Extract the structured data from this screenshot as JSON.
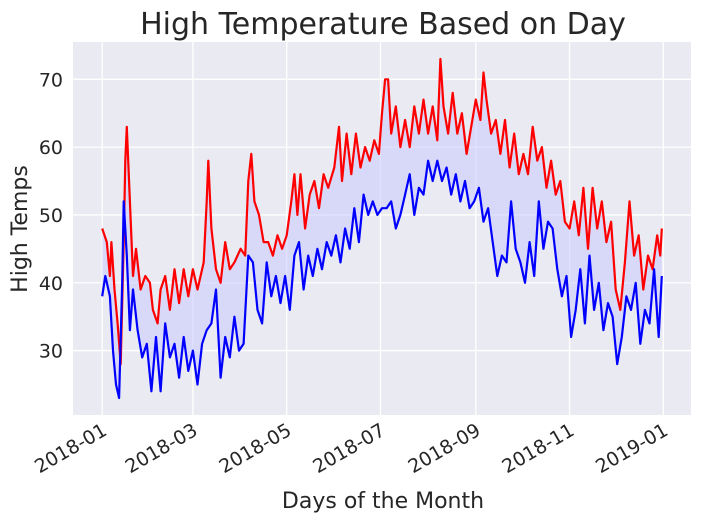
{
  "chart_data": {
    "type": "line",
    "title": "High Temperature Based on Day",
    "xlabel": "Days of the Month",
    "ylabel": "High Temps",
    "x_ticks": [
      "2018-01",
      "2018-03",
      "2018-05",
      "2018-07",
      "2018-09",
      "2018-11",
      "2019-01"
    ],
    "y_ticks": [
      30,
      40,
      50,
      60,
      70
    ],
    "ylim": [
      20.5,
      75.5
    ],
    "xlim": [
      "2017-12-13",
      "2019-01-19"
    ],
    "grid": true,
    "fill_between": true,
    "colors": {
      "high": "#ff0000",
      "low": "#0000ff",
      "fill": "#c8c8ff",
      "background": "#eaeaf2",
      "grid": "#ffffff"
    },
    "series": [
      {
        "key": "high",
        "color": "#ff0000",
        "points": [
          [
            "2018-01-01",
            48
          ],
          [
            "2018-01-04",
            46
          ],
          [
            "2018-01-06",
            41
          ],
          [
            "2018-01-07",
            46
          ],
          [
            "2018-01-09",
            39
          ],
          [
            "2018-01-11",
            34
          ],
          [
            "2018-01-13",
            28
          ],
          [
            "2018-01-15",
            46
          ],
          [
            "2018-01-16",
            58
          ],
          [
            "2018-01-17",
            63
          ],
          [
            "2018-01-19",
            52
          ],
          [
            "2018-01-21",
            41
          ],
          [
            "2018-01-23",
            45
          ],
          [
            "2018-01-26",
            39
          ],
          [
            "2018-01-29",
            41
          ],
          [
            "2018-02-01",
            40
          ],
          [
            "2018-02-03",
            36
          ],
          [
            "2018-02-06",
            34
          ],
          [
            "2018-02-08",
            39
          ],
          [
            "2018-02-11",
            41
          ],
          [
            "2018-02-14",
            36
          ],
          [
            "2018-02-17",
            42
          ],
          [
            "2018-02-20",
            37
          ],
          [
            "2018-02-23",
            42
          ],
          [
            "2018-02-26",
            38
          ],
          [
            "2018-03-01",
            42
          ],
          [
            "2018-03-04",
            39
          ],
          [
            "2018-03-08",
            43
          ],
          [
            "2018-03-10",
            52
          ],
          [
            "2018-03-11",
            58
          ],
          [
            "2018-03-13",
            48
          ],
          [
            "2018-03-16",
            42
          ],
          [
            "2018-03-19",
            40
          ],
          [
            "2018-03-22",
            46
          ],
          [
            "2018-03-25",
            42
          ],
          [
            "2018-03-28",
            43
          ],
          [
            "2018-04-01",
            45
          ],
          [
            "2018-04-04",
            44
          ],
          [
            "2018-04-06",
            55
          ],
          [
            "2018-04-08",
            59
          ],
          [
            "2018-04-10",
            52
          ],
          [
            "2018-04-13",
            50
          ],
          [
            "2018-04-16",
            46
          ],
          [
            "2018-04-19",
            46
          ],
          [
            "2018-04-22",
            44
          ],
          [
            "2018-04-25",
            47
          ],
          [
            "2018-04-28",
            45
          ],
          [
            "2018-05-01",
            47
          ],
          [
            "2018-05-04",
            52
          ],
          [
            "2018-05-06",
            56
          ],
          [
            "2018-05-08",
            50
          ],
          [
            "2018-05-10",
            56
          ],
          [
            "2018-05-13",
            48
          ],
          [
            "2018-05-16",
            53
          ],
          [
            "2018-05-19",
            55
          ],
          [
            "2018-05-22",
            51
          ],
          [
            "2018-05-25",
            56
          ],
          [
            "2018-05-28",
            54
          ],
          [
            "2018-06-01",
            57
          ],
          [
            "2018-06-04",
            63
          ],
          [
            "2018-06-06",
            55
          ],
          [
            "2018-06-09",
            62
          ],
          [
            "2018-06-12",
            56
          ],
          [
            "2018-06-15",
            62
          ],
          [
            "2018-06-18",
            57
          ],
          [
            "2018-06-21",
            60
          ],
          [
            "2018-06-24",
            58
          ],
          [
            "2018-06-27",
            61
          ],
          [
            "2018-06-30",
            59
          ],
          [
            "2018-07-02",
            65
          ],
          [
            "2018-07-04",
            70
          ],
          [
            "2018-07-06",
            70
          ],
          [
            "2018-07-08",
            62
          ],
          [
            "2018-07-11",
            66
          ],
          [
            "2018-07-14",
            60
          ],
          [
            "2018-07-17",
            64
          ],
          [
            "2018-07-20",
            60
          ],
          [
            "2018-07-23",
            66
          ],
          [
            "2018-07-26",
            62
          ],
          [
            "2018-07-29",
            67
          ],
          [
            "2018-08-01",
            62
          ],
          [
            "2018-08-04",
            66
          ],
          [
            "2018-08-07",
            61
          ],
          [
            "2018-08-09",
            73
          ],
          [
            "2018-08-11",
            66
          ],
          [
            "2018-08-14",
            62
          ],
          [
            "2018-08-17",
            68
          ],
          [
            "2018-08-20",
            62
          ],
          [
            "2018-08-23",
            65
          ],
          [
            "2018-08-26",
            59
          ],
          [
            "2018-08-29",
            63
          ],
          [
            "2018-09-01",
            67
          ],
          [
            "2018-09-04",
            64
          ],
          [
            "2018-09-06",
            71
          ],
          [
            "2018-09-08",
            67
          ],
          [
            "2018-09-11",
            62
          ],
          [
            "2018-09-14",
            64
          ],
          [
            "2018-09-17",
            59
          ],
          [
            "2018-09-20",
            64
          ],
          [
            "2018-09-23",
            57
          ],
          [
            "2018-09-26",
            62
          ],
          [
            "2018-09-29",
            56
          ],
          [
            "2018-10-02",
            59
          ],
          [
            "2018-10-05",
            56
          ],
          [
            "2018-10-08",
            63
          ],
          [
            "2018-10-11",
            58
          ],
          [
            "2018-10-14",
            60
          ],
          [
            "2018-10-17",
            54
          ],
          [
            "2018-10-20",
            58
          ],
          [
            "2018-10-23",
            53
          ],
          [
            "2018-10-26",
            55
          ],
          [
            "2018-10-29",
            49
          ],
          [
            "2018-11-01",
            48
          ],
          [
            "2018-11-04",
            52
          ],
          [
            "2018-11-07",
            47
          ],
          [
            "2018-11-10",
            54
          ],
          [
            "2018-11-13",
            45
          ],
          [
            "2018-11-16",
            54
          ],
          [
            "2018-11-19",
            48
          ],
          [
            "2018-11-22",
            52
          ],
          [
            "2018-11-25",
            46
          ],
          [
            "2018-11-28",
            49
          ],
          [
            "2018-12-01",
            39
          ],
          [
            "2018-12-04",
            36
          ],
          [
            "2018-12-07",
            43
          ],
          [
            "2018-12-10",
            52
          ],
          [
            "2018-12-13",
            44
          ],
          [
            "2018-12-16",
            47
          ],
          [
            "2018-12-19",
            39
          ],
          [
            "2018-12-22",
            44
          ],
          [
            "2018-12-25",
            42
          ],
          [
            "2018-12-28",
            47
          ],
          [
            "2018-12-30",
            44
          ],
          [
            "2018-12-31",
            48
          ]
        ]
      },
      {
        "key": "low",
        "color": "#0000ff",
        "points": [
          [
            "2018-01-01",
            38
          ],
          [
            "2018-01-03",
            41
          ],
          [
            "2018-01-06",
            38
          ],
          [
            "2018-01-08",
            30
          ],
          [
            "2018-01-10",
            25
          ],
          [
            "2018-01-12",
            23
          ],
          [
            "2018-01-14",
            40
          ],
          [
            "2018-01-15",
            52
          ],
          [
            "2018-01-17",
            44
          ],
          [
            "2018-01-19",
            33
          ],
          [
            "2018-01-21",
            39
          ],
          [
            "2018-01-24",
            33
          ],
          [
            "2018-01-27",
            29
          ],
          [
            "2018-01-30",
            31
          ],
          [
            "2018-02-02",
            24
          ],
          [
            "2018-02-05",
            32
          ],
          [
            "2018-02-08",
            24
          ],
          [
            "2018-02-11",
            34
          ],
          [
            "2018-02-14",
            29
          ],
          [
            "2018-02-17",
            31
          ],
          [
            "2018-02-20",
            26
          ],
          [
            "2018-02-23",
            32
          ],
          [
            "2018-02-26",
            27
          ],
          [
            "2018-03-01",
            30
          ],
          [
            "2018-03-04",
            25
          ],
          [
            "2018-03-07",
            31
          ],
          [
            "2018-03-10",
            33
          ],
          [
            "2018-03-13",
            34
          ],
          [
            "2018-03-16",
            39
          ],
          [
            "2018-03-19",
            26
          ],
          [
            "2018-03-22",
            32
          ],
          [
            "2018-03-25",
            29
          ],
          [
            "2018-03-28",
            35
          ],
          [
            "2018-03-31",
            30
          ],
          [
            "2018-04-03",
            31
          ],
          [
            "2018-04-06",
            44
          ],
          [
            "2018-04-09",
            43
          ],
          [
            "2018-04-12",
            36
          ],
          [
            "2018-04-15",
            34
          ],
          [
            "2018-04-18",
            43
          ],
          [
            "2018-04-21",
            38
          ],
          [
            "2018-04-24",
            41
          ],
          [
            "2018-04-27",
            37
          ],
          [
            "2018-04-30",
            41
          ],
          [
            "2018-05-03",
            36
          ],
          [
            "2018-05-06",
            44
          ],
          [
            "2018-05-09",
            46
          ],
          [
            "2018-05-12",
            39
          ],
          [
            "2018-05-15",
            44
          ],
          [
            "2018-05-18",
            41
          ],
          [
            "2018-05-21",
            45
          ],
          [
            "2018-05-24",
            42
          ],
          [
            "2018-05-27",
            46
          ],
          [
            "2018-05-30",
            44
          ],
          [
            "2018-06-02",
            47
          ],
          [
            "2018-06-05",
            43
          ],
          [
            "2018-06-08",
            48
          ],
          [
            "2018-06-11",
            45
          ],
          [
            "2018-06-14",
            51
          ],
          [
            "2018-06-17",
            46
          ],
          [
            "2018-06-20",
            53
          ],
          [
            "2018-06-23",
            50
          ],
          [
            "2018-06-26",
            52
          ],
          [
            "2018-06-29",
            50
          ],
          [
            "2018-07-02",
            51
          ],
          [
            "2018-07-05",
            51
          ],
          [
            "2018-07-08",
            52
          ],
          [
            "2018-07-11",
            48
          ],
          [
            "2018-07-14",
            50
          ],
          [
            "2018-07-17",
            53
          ],
          [
            "2018-07-20",
            56
          ],
          [
            "2018-07-23",
            50
          ],
          [
            "2018-07-26",
            54
          ],
          [
            "2018-07-29",
            53
          ],
          [
            "2018-08-01",
            58
          ],
          [
            "2018-08-04",
            55
          ],
          [
            "2018-08-07",
            58
          ],
          [
            "2018-08-10",
            55
          ],
          [
            "2018-08-13",
            57
          ],
          [
            "2018-08-16",
            53
          ],
          [
            "2018-08-19",
            56
          ],
          [
            "2018-08-22",
            52
          ],
          [
            "2018-08-25",
            55
          ],
          [
            "2018-08-28",
            51
          ],
          [
            "2018-08-31",
            52
          ],
          [
            "2018-09-03",
            54
          ],
          [
            "2018-09-06",
            49
          ],
          [
            "2018-09-09",
            51
          ],
          [
            "2018-09-12",
            46
          ],
          [
            "2018-09-15",
            41
          ],
          [
            "2018-09-18",
            44
          ],
          [
            "2018-09-21",
            43
          ],
          [
            "2018-09-24",
            52
          ],
          [
            "2018-09-27",
            45
          ],
          [
            "2018-09-30",
            43
          ],
          [
            "2018-10-03",
            40
          ],
          [
            "2018-10-06",
            46
          ],
          [
            "2018-10-09",
            41
          ],
          [
            "2018-10-12",
            52
          ],
          [
            "2018-10-15",
            45
          ],
          [
            "2018-10-18",
            49
          ],
          [
            "2018-10-21",
            48
          ],
          [
            "2018-10-24",
            42
          ],
          [
            "2018-10-27",
            38
          ],
          [
            "2018-10-30",
            41
          ],
          [
            "2018-11-02",
            32
          ],
          [
            "2018-11-05",
            36
          ],
          [
            "2018-11-08",
            42
          ],
          [
            "2018-11-11",
            34
          ],
          [
            "2018-11-14",
            44
          ],
          [
            "2018-11-17",
            36
          ],
          [
            "2018-11-20",
            40
          ],
          [
            "2018-11-23",
            33
          ],
          [
            "2018-11-26",
            37
          ],
          [
            "2018-11-29",
            35
          ],
          [
            "2018-12-02",
            28
          ],
          [
            "2018-12-05",
            32
          ],
          [
            "2018-12-08",
            38
          ],
          [
            "2018-12-11",
            36
          ],
          [
            "2018-12-14",
            40
          ],
          [
            "2018-12-17",
            31
          ],
          [
            "2018-12-20",
            36
          ],
          [
            "2018-12-23",
            34
          ],
          [
            "2018-12-26",
            42
          ],
          [
            "2018-12-29",
            32
          ],
          [
            "2018-12-31",
            41
          ]
        ]
      }
    ]
  }
}
